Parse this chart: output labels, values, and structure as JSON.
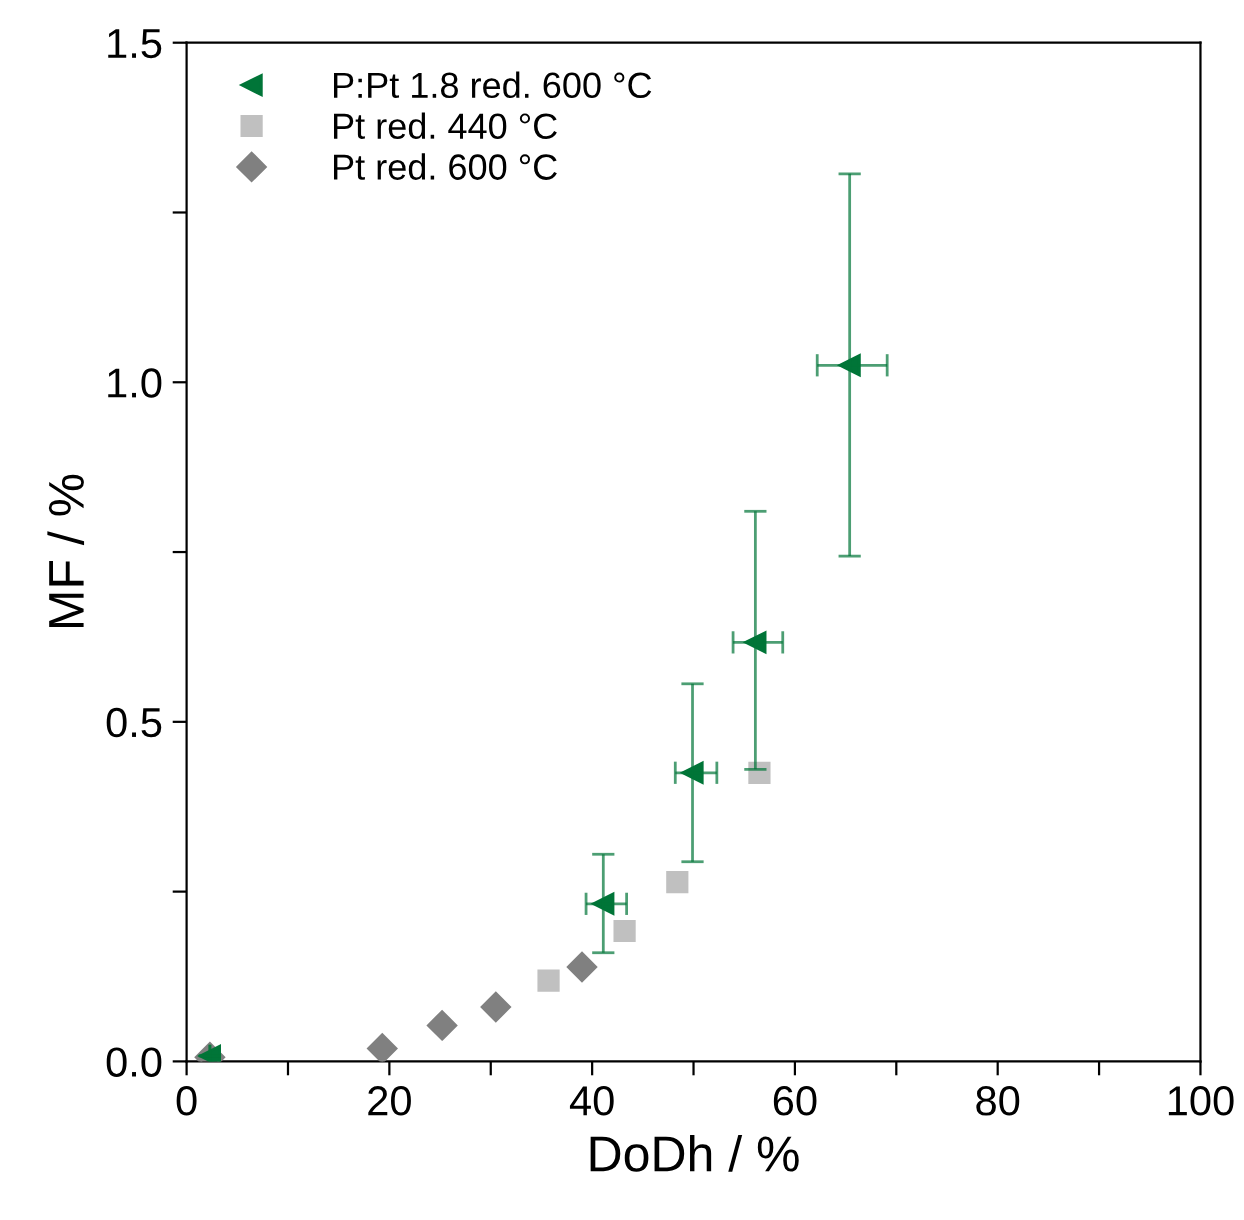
{
  "chart_data": {
    "type": "scatter",
    "xlabel": "DoDh / %",
    "ylabel": "MF / %",
    "xlim": [
      0,
      100
    ],
    "ylim": [
      0,
      1.5
    ],
    "xticks": [
      0,
      {
        "value": 10,
        "label": null
      },
      20,
      {
        "value": 30,
        "label": null
      },
      40,
      {
        "value": 50,
        "label": null
      },
      60,
      {
        "value": 70,
        "label": null
      },
      80,
      {
        "value": 90,
        "label": null
      },
      100
    ],
    "yticks": [
      {
        "value": 0,
        "label": "0.0"
      },
      {
        "value": 0.25,
        "label": null
      },
      {
        "value": 0.5,
        "label": "0.5"
      },
      {
        "value": 0.75,
        "label": null
      },
      {
        "value": 1.0,
        "label": "1.0"
      },
      {
        "value": 1.25,
        "label": null
      },
      {
        "value": 1.5,
        "label": "1.5"
      }
    ],
    "grid": false,
    "legend": "top left",
    "series": [
      {
        "name": "P:Pt 1.8 red. 600 °C",
        "color": "#007538",
        "marker": "triangle",
        "x": [
          2.3,
          41.1,
          49.9,
          56.1,
          65.4
        ],
        "values": [
          0.008,
          0.232,
          0.425,
          0.617,
          1.025
        ],
        "errors": [
          null,
          [
            0.16,
            0.305
          ],
          [
            0.294,
            0.556
          ],
          [
            0.43,
            0.81
          ],
          [
            0.744,
            1.307
          ]
        ],
        "xerrors": [
          null,
          [
            39.4,
            43.4
          ],
          [
            48.2,
            52.3
          ],
          [
            53.9,
            58.8
          ],
          [
            62.2,
            69.1
          ]
        ]
      },
      {
        "name": "Pt red. 440 °C",
        "color": "#c0c0c0",
        "marker": "square",
        "x": [
          35.7,
          43.2,
          48.4,
          56.5
        ],
        "values": [
          0.119,
          0.192,
          0.264,
          0.425
        ]
      },
      {
        "name": "Pt red. 600 °C",
        "color": "#808080",
        "marker": "diamond",
        "x": [
          2.3,
          19.3,
          25.2,
          30.5,
          39.0
        ],
        "values": [
          0.006,
          0.019,
          0.053,
          0.08,
          0.139
        ]
      }
    ]
  }
}
